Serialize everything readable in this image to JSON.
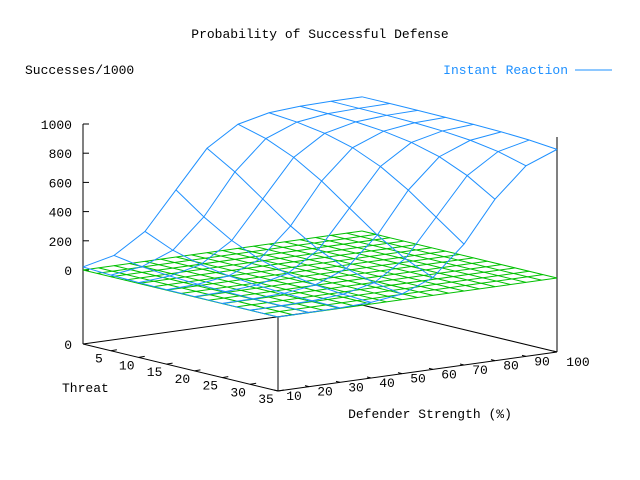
{
  "chart_data": {
    "type": "surface",
    "title": "Probability of Successful Defense",
    "zlabel": "Successes/1000",
    "xlabel": "Threat",
    "ylabel": "Defender Strength (%)",
    "legend": [
      {
        "name": "Instant Reaction",
        "color": "#1e90ff"
      }
    ],
    "legend_position": "top-right",
    "x_ticks": [
      "5",
      "10",
      "15",
      "20",
      "25",
      "30",
      "35"
    ],
    "y_ticks": [
      "10",
      "20",
      "30",
      "40",
      "50",
      "60",
      "70",
      "80",
      "90",
      "100"
    ],
    "z_ticks": [
      "0",
      "200",
      "400",
      "600",
      "800",
      "1000"
    ],
    "z_base_label": "0",
    "xlim": [
      0,
      35
    ],
    "ylim": [
      10,
      100
    ],
    "zlim": [
      0,
      1000
    ],
    "threat": [
      0,
      5,
      10,
      15,
      20,
      25,
      30,
      35
    ],
    "defender": [
      10,
      20,
      30,
      40,
      50,
      60,
      70,
      80,
      90,
      100
    ],
    "series": [
      {
        "name": "Instant Reaction",
        "color": "#1e90ff",
        "z": [
          [
            21,
            70,
            205,
            460,
            715,
            850,
            899,
            914,
            918,
            919
          ],
          [
            11,
            39,
            122,
            321,
            599,
            798,
            881,
            909,
            916,
            919
          ],
          [
            6,
            21,
            70,
            205,
            460,
            715,
            850,
            899,
            914,
            918
          ],
          [
            3,
            11,
            39,
            122,
            321,
            599,
            798,
            881,
            909,
            916
          ],
          [
            2,
            6,
            21,
            70,
            205,
            460,
            715,
            850,
            899,
            914
          ],
          [
            1,
            3,
            11,
            39,
            122,
            321,
            599,
            798,
            881,
            909
          ],
          [
            1,
            2,
            6,
            21,
            70,
            205,
            460,
            715,
            850,
            899
          ],
          [
            0,
            1,
            3,
            11,
            39,
            122,
            321,
            599,
            798,
            881
          ]
        ]
      },
      {
        "name": "base plane",
        "color": "#00c000",
        "z_constant": 0
      }
    ]
  }
}
